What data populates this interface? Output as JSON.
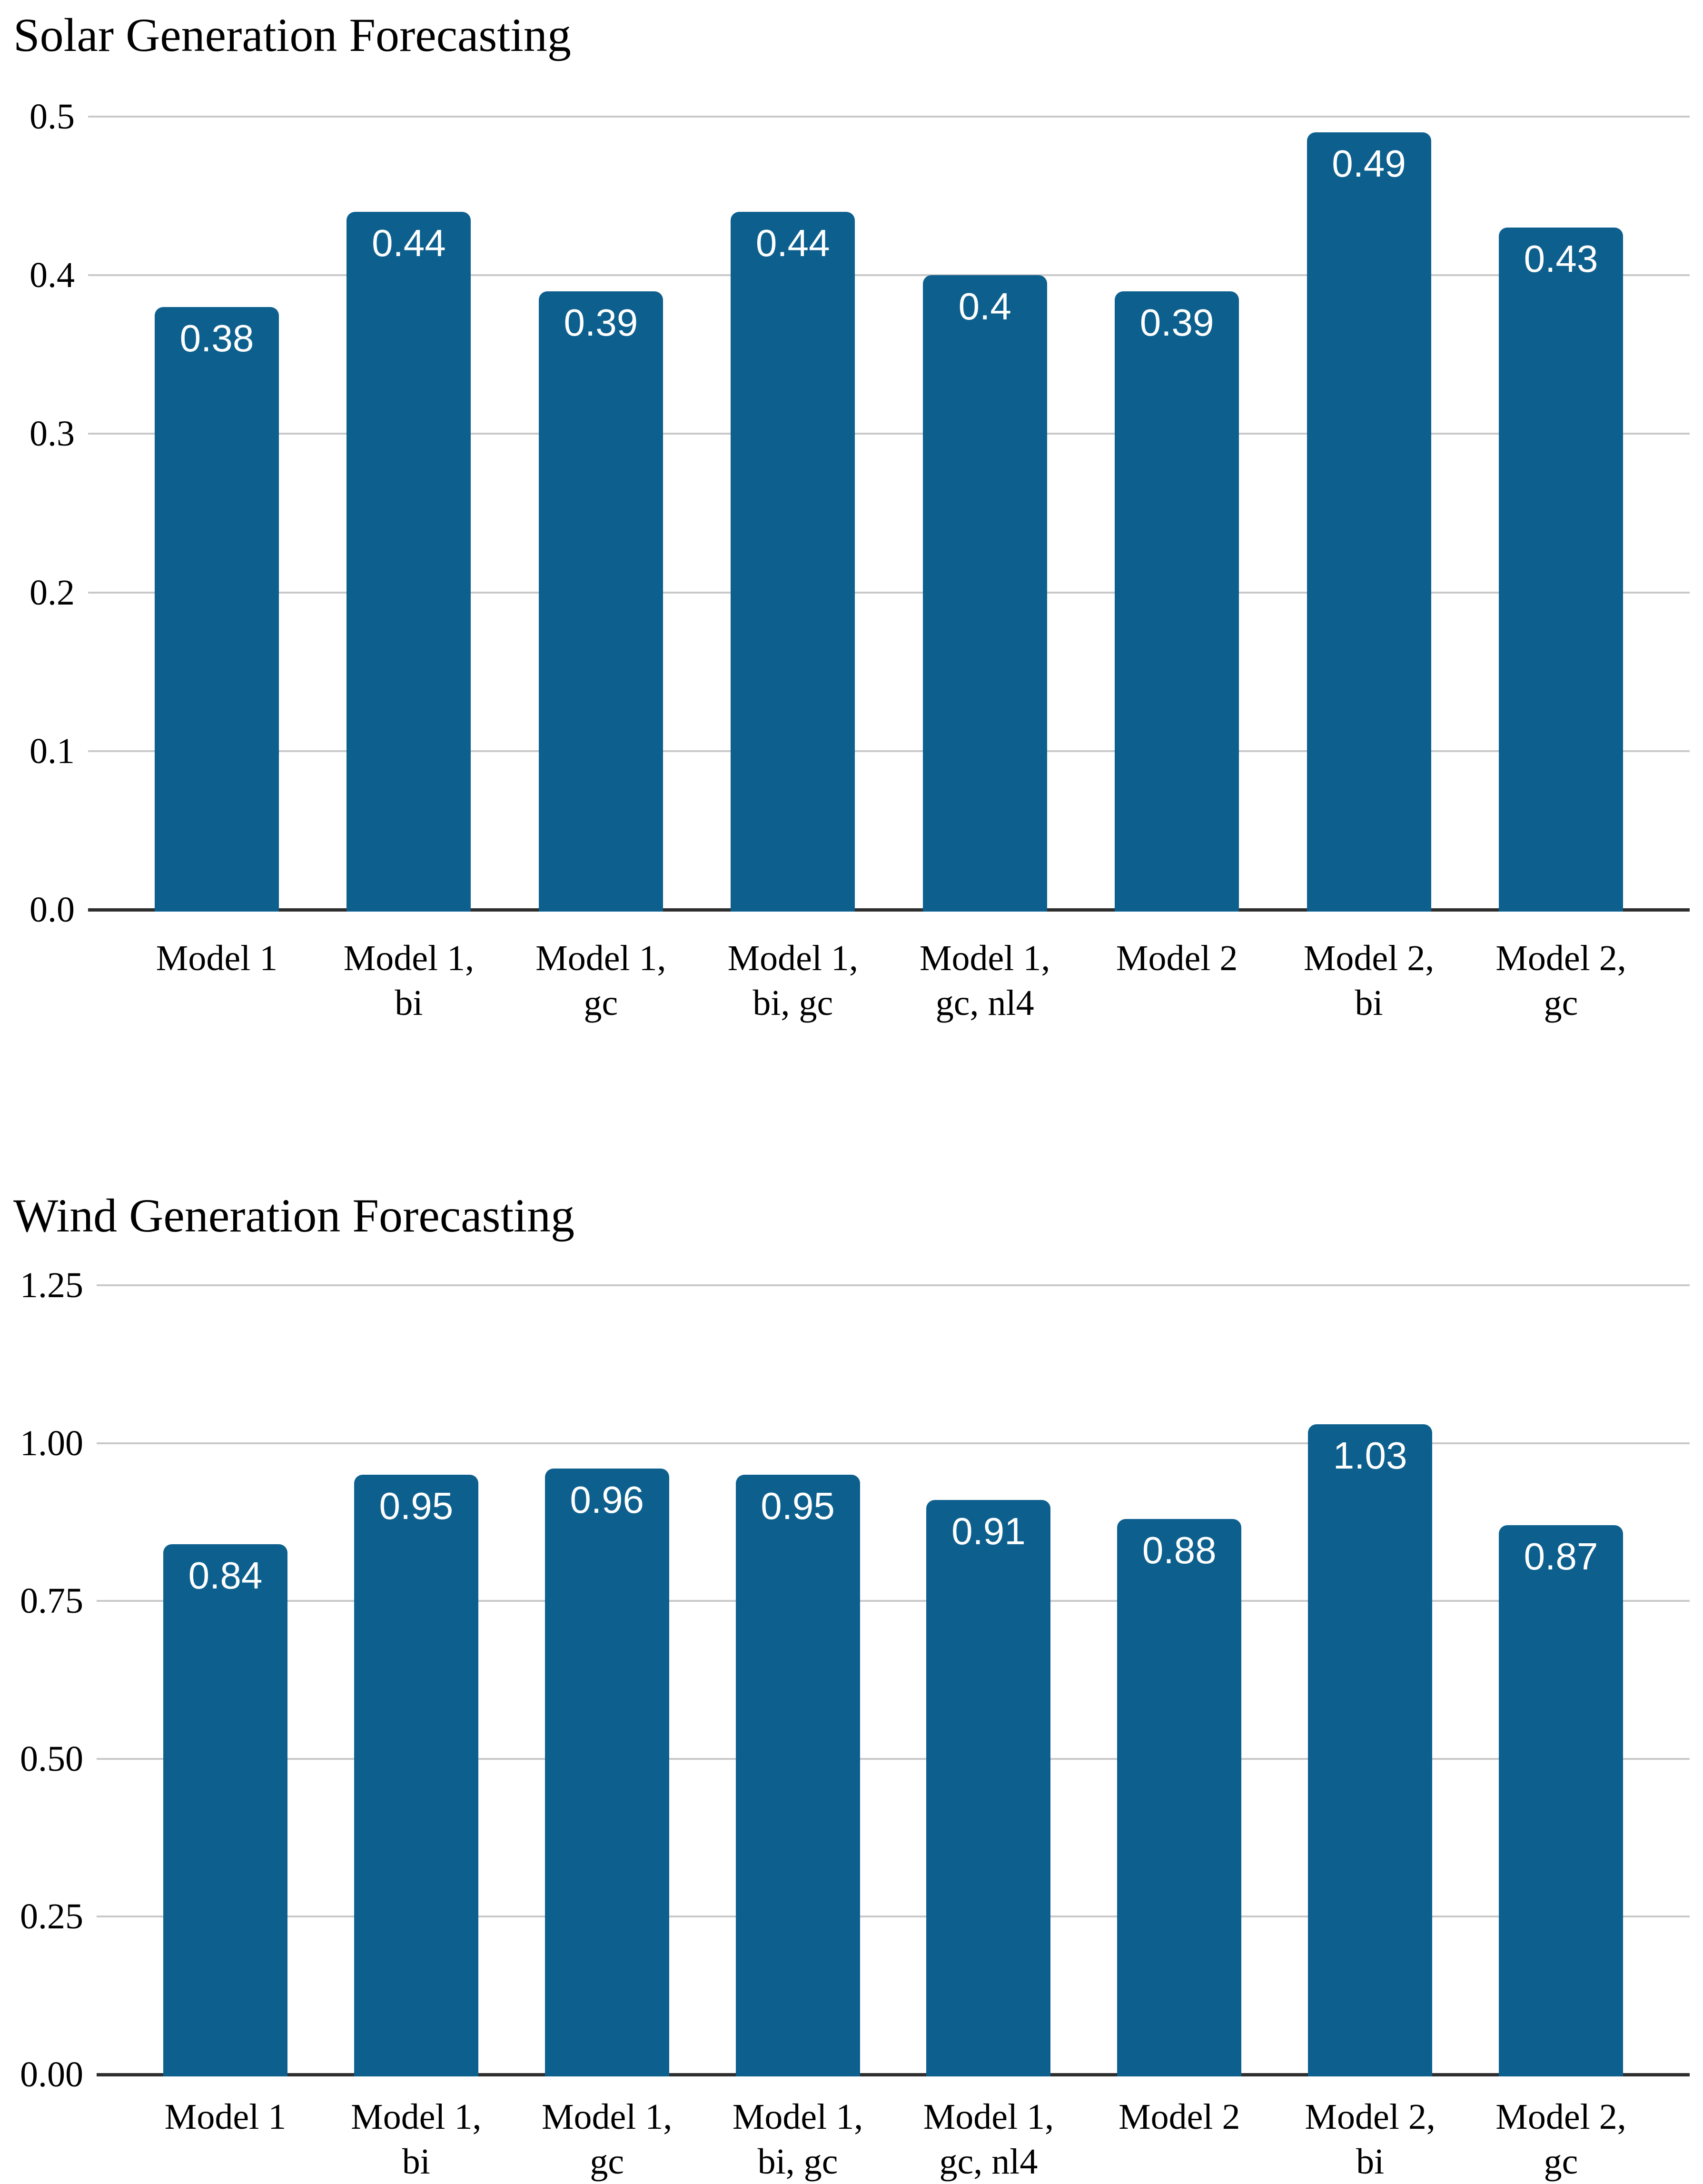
{
  "colors": {
    "bar": "#0d608e",
    "grid": "#c9c9c9",
    "axis": "#2e2e2e",
    "text": "#000000",
    "bar_label": "#ffffff",
    "background": "#ffffff"
  },
  "chart_data": [
    {
      "type": "bar",
      "title": "Solar Generation Forecasting",
      "xlabel": "",
      "ylabel": "",
      "grid": true,
      "legend": false,
      "categories": [
        "Model 1",
        "Model 1,\nbi",
        "Model 1,\ngc",
        "Model 1,\nbi, gc",
        "Model 1,\ngc, nl4",
        "Model 2",
        "Model 2,\nbi",
        "Model 2,\ngc"
      ],
      "values": [
        0.38,
        0.44,
        0.39,
        0.44,
        0.4,
        0.39,
        0.49,
        0.43
      ],
      "bar_labels": [
        "0.38",
        "0.44",
        "0.39",
        "0.44",
        "0.4",
        "0.39",
        "0.49",
        "0.43"
      ],
      "ylim": [
        0,
        0.5
      ],
      "ytick_values": [
        0,
        0.1,
        0.2,
        0.3,
        0.4,
        0.5
      ],
      "ytick_labels": [
        "0.0",
        "0.1",
        "0.2",
        "0.3",
        "0.4",
        "0.5"
      ],
      "bar_color": "#0d608e",
      "bar_label_color": "#ffffff"
    },
    {
      "type": "bar",
      "title": "Wind Generation Forecasting",
      "xlabel": "",
      "ylabel": "",
      "grid": true,
      "legend": false,
      "categories": [
        "Model 1",
        "Model 1,\nbi",
        "Model 1,\ngc",
        "Model 1,\nbi, gc",
        "Model 1,\ngc, nl4",
        "Model 2",
        "Model 2,\nbi",
        "Model 2,\ngc"
      ],
      "values": [
        0.84,
        0.95,
        0.96,
        0.95,
        0.91,
        0.88,
        1.03,
        0.87
      ],
      "bar_labels": [
        "0.84",
        "0.95",
        "0.96",
        "0.95",
        "0.91",
        "0.88",
        "1.03",
        "0.87"
      ],
      "ylim": [
        0,
        1.25
      ],
      "ytick_values": [
        0,
        0.25,
        0.5,
        0.75,
        1,
        1.25
      ],
      "ytick_labels": [
        "0.00",
        "0.25",
        "0.50",
        "0.75",
        "1.00",
        "1.25"
      ],
      "bar_color": "#0d608e",
      "bar_label_color": "#ffffff"
    }
  ]
}
